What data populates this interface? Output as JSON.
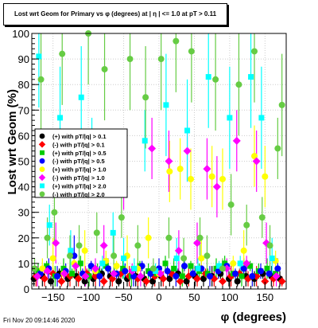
{
  "title": "Lost wrt Geom for Primary vs φ (degrees) at | η | <= 1.0 at pT > 0.11",
  "timestamp": "Fri Nov 20 09:14:46 2020",
  "chart_data": {
    "type": "scatter",
    "xlabel": "φ (degrees)",
    "ylabel": "Lost wrt Geom (%)",
    "xlim": [
      -180,
      180
    ],
    "ylim": [
      0,
      100
    ],
    "x_ticks": [
      -150,
      -100,
      -50,
      0,
      50,
      100,
      150
    ],
    "x_tick_labels": [
      "−150",
      "−100",
      "−50",
      "0",
      "50",
      "100",
      "150"
    ],
    "y_ticks": [
      0,
      10,
      20,
      30,
      40,
      50,
      60,
      70,
      80,
      90,
      100
    ],
    "legend_position": "left-middle",
    "series": [
      {
        "name": "(+) with pT/|q| > 0.1",
        "color": "#000000",
        "x": [
          -177,
          -165,
          -153,
          -141,
          -129,
          -117,
          -105,
          -93,
          -81,
          -69,
          -57,
          -45,
          -33,
          -21,
          -9,
          3,
          15,
          27,
          39,
          51,
          63,
          75,
          87,
          99,
          111,
          123,
          135,
          147,
          159,
          171
        ],
        "y": [
          4,
          5,
          3,
          6,
          4,
          5,
          3,
          4,
          6,
          5,
          3,
          4,
          5,
          4,
          3,
          5,
          4,
          6,
          3,
          5,
          4,
          5,
          6,
          4,
          3,
          5,
          4,
          6,
          5,
          4
        ]
      },
      {
        "name": "(-) with pT/|q| > 0.1",
        "color": "#ff0000",
        "x": [
          -174,
          -162,
          -150,
          -138,
          -126,
          -114,
          -102,
          -90,
          -78,
          -66,
          -54,
          -42,
          -30,
          -18,
          -6,
          6,
          18,
          30,
          42,
          54,
          66,
          78,
          90,
          102,
          114,
          126,
          138,
          150,
          162,
          174
        ],
        "y": [
          5,
          4,
          6,
          3,
          5,
          4,
          6,
          5,
          3,
          4,
          6,
          5,
          4,
          3,
          5,
          4,
          6,
          3,
          5,
          4,
          6,
          4,
          3,
          5,
          6,
          4,
          5,
          3,
          4,
          3
        ]
      },
      {
        "name": "(+) with pT/|q| > 0.5",
        "color": "#00cc00",
        "x": [
          -171,
          -159,
          -147,
          -135,
          -123,
          -111,
          -99,
          -87,
          -75,
          -63,
          -51,
          -39,
          -27,
          -15,
          -3,
          9,
          21,
          33,
          45,
          57,
          69,
          81,
          93,
          105,
          117,
          129,
          141,
          153,
          165
        ],
        "y": [
          7,
          9,
          5,
          8,
          6,
          10,
          5,
          7,
          9,
          6,
          8,
          5,
          9,
          7,
          6,
          10,
          8,
          5,
          9,
          7,
          6,
          8,
          10,
          6,
          5,
          9,
          7,
          8,
          6
        ]
      },
      {
        "name": "(-) with pT/|q| > 0.5",
        "color": "#0000ff",
        "x": [
          -168,
          -156,
          -144,
          -132,
          -120,
          -108,
          -96,
          -84,
          -72,
          -60,
          -48,
          -36,
          -24,
          -12,
          0,
          12,
          24,
          36,
          48,
          60,
          72,
          84,
          96,
          108,
          120,
          132,
          144,
          156,
          168
        ],
        "y": [
          6,
          8,
          5,
          7,
          13,
          6,
          9,
          5,
          8,
          6,
          7,
          5,
          9,
          6,
          8,
          7,
          5,
          9,
          6,
          8,
          5,
          7,
          9,
          6,
          8,
          5,
          7,
          6,
          8
        ]
      },
      {
        "name": "(+) with pT/|q| > 1.0",
        "color": "#ffff00",
        "x": [
          -165,
          -150,
          -135,
          -120,
          -105,
          -90,
          -75,
          -60,
          -45,
          -30,
          -15,
          0,
          15,
          30,
          45,
          60,
          75,
          90,
          105,
          120,
          135,
          150,
          165
        ],
        "y": [
          8,
          12,
          6,
          10,
          15,
          7,
          11,
          9,
          13,
          8,
          20,
          6,
          46,
          47,
          43,
          12,
          44,
          43,
          10,
          15,
          52,
          44,
          11
        ]
      },
      {
        "name": "(-) with pT/|q| > 1.0",
        "color": "#ff00ff",
        "x": [
          -172,
          -158,
          -146,
          -134,
          -118,
          -104,
          -90,
          -78,
          -64,
          -50,
          -38,
          -26,
          -10,
          2,
          14,
          28,
          40,
          54,
          68,
          82,
          96,
          110,
          124,
          138,
          152,
          166
        ],
        "y": [
          5,
          7,
          18,
          6,
          9,
          5,
          8,
          17,
          6,
          43,
          7,
          5,
          55,
          6,
          50,
          15,
          54,
          18,
          47,
          40,
          8,
          58,
          10,
          50,
          18,
          5
        ]
      },
      {
        "name": "(+) with pT/|q| > 2.0",
        "color": "#00ffff",
        "x": [
          -170,
          -155,
          -140,
          -125,
          -110,
          -95,
          -80,
          -65,
          -50,
          -35,
          -20,
          -5,
          10,
          25,
          40,
          55,
          70,
          85,
          100,
          115,
          130,
          145,
          160
        ],
        "y": [
          91,
          25,
          67,
          15,
          75,
          55,
          10,
          22,
          12,
          8,
          58,
          7,
          72,
          12,
          62,
          8,
          83,
          9,
          67,
          10,
          83,
          67,
          12
        ]
      },
      {
        "name": "(-) with pT/|q| > 2.0",
        "color": "#66cc44",
        "x": [
          -176,
          -167,
          -158,
          -148,
          -137,
          -126,
          -113,
          -100,
          -88,
          -77,
          -64,
          -53,
          -41,
          -30,
          -19,
          -8,
          3,
          14,
          24,
          35,
          46,
          58,
          68,
          80,
          90,
          102,
          113,
          124,
          135,
          146,
          157,
          168,
          174
        ],
        "y": [
          8,
          82,
          20,
          30,
          92,
          13,
          17,
          100,
          22,
          86,
          13,
          28,
          90,
          17,
          75,
          8,
          90,
          20,
          97,
          12,
          93,
          20,
          13,
          82,
          8,
          33,
          80,
          25,
          93,
          28,
          17,
          55,
          72
        ]
      }
    ]
  }
}
